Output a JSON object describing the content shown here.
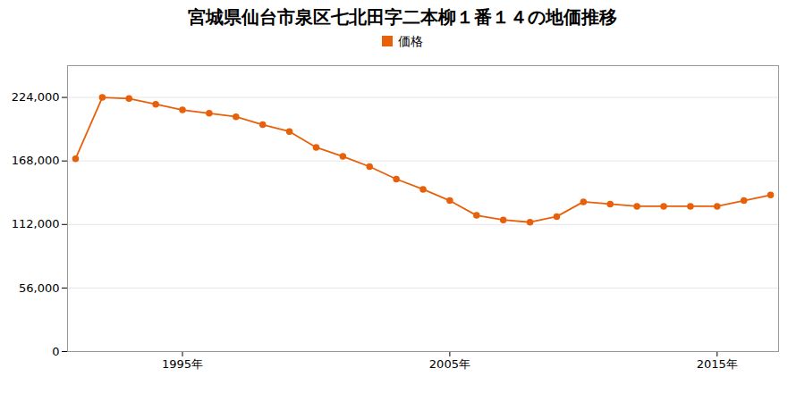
{
  "chart_data": {
    "type": "line",
    "title": "宮城県仙台市泉区七北田字二本柳１番１４の地価推移",
    "x": [
      1991,
      1992,
      1993,
      1994,
      1995,
      1996,
      1997,
      1998,
      1999,
      2000,
      2001,
      2002,
      2003,
      2004,
      2005,
      2006,
      2007,
      2008,
      2009,
      2010,
      2011,
      2012,
      2013,
      2014,
      2015,
      2016,
      2017
    ],
    "series": [
      {
        "name": "価格",
        "color": "#E8600A",
        "marker": "circle",
        "values": [
          170000,
          224000,
          223000,
          218000,
          213000,
          210000,
          207000,
          200000,
          194000,
          180000,
          172000,
          163000,
          152000,
          143000,
          133000,
          120000,
          116000,
          114000,
          119000,
          132000,
          130000,
          128000,
          128000,
          128000,
          128000,
          133000,
          138000
        ]
      }
    ],
    "xlim": [
      1990.7,
      2017.3
    ],
    "xticks": [
      {
        "value": 1995,
        "label": "1995年"
      },
      {
        "value": 2005,
        "label": "2005年"
      },
      {
        "value": 2015,
        "label": "2015年"
      }
    ],
    "ylim": [
      0,
      252000
    ],
    "yticks": [
      0,
      {
        "value": 56000,
        "label": "56,000"
      },
      {
        "value": 112000,
        "label": "112,000"
      },
      {
        "value": 168000,
        "label": "168,000"
      },
      {
        "value": 224000,
        "label": "224,000"
      }
    ],
    "grid": "y",
    "legend": "top"
  }
}
